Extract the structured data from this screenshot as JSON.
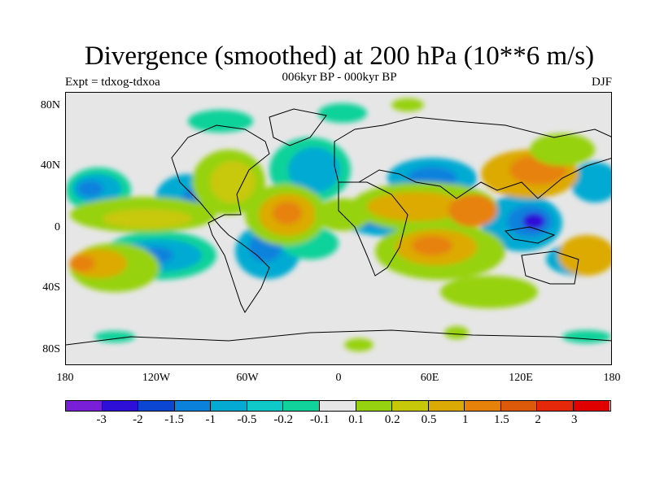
{
  "title": "Divergence (smoothed) at 200 hPa (10**6 m/s)",
  "subtitle": "006kyr BP - 000kyr BP",
  "experiment": "Expt = tdxog-tdxoa",
  "season": "DJF",
  "lat_labels": [
    "80N",
    "40N",
    "0",
    "40S",
    "80S"
  ],
  "lon_labels": [
    "180",
    "120W",
    "60W",
    "0",
    "60E",
    "120E",
    "180"
  ],
  "colorbar": {
    "labels": [
      "-3",
      "-2",
      "-1.5",
      "-1",
      "-0.5",
      "-0.2",
      "-0.1",
      "0.1",
      "0.2",
      "0.5",
      "1",
      "1.5",
      "2",
      "3"
    ],
    "colors": [
      "#7a1fd8",
      "#2d0fd8",
      "#0a46d2",
      "#0a82dc",
      "#05aad2",
      "#0fc8c8",
      "#10d29a",
      "#e6e6e6",
      "#96d20f",
      "#c8c80a",
      "#dcaa05",
      "#e6820a",
      "#dc5a0a",
      "#e6280a",
      "#e10000"
    ]
  }
}
